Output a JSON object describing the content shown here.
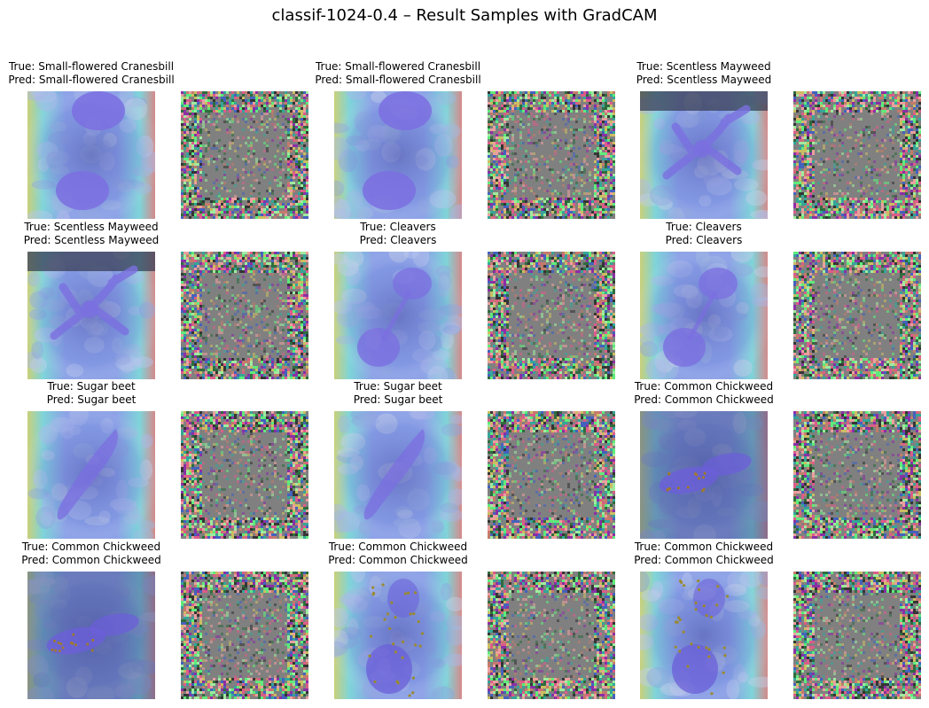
{
  "title": "classif-1024-0.4 – Result Samples with GradCAM",
  "samples": [
    {
      "true_label": "True: Small-flowered Cranesbill",
      "pred_label": "Pred: Small-flowered Cranesbill",
      "plant": "cranesbill"
    },
    {
      "true_label": "True: Small-flowered Cranesbill",
      "pred_label": "Pred: Small-flowered Cranesbill",
      "plant": "cranesbill"
    },
    {
      "true_label": "True: Scentless Mayweed",
      "pred_label": "Pred: Scentless Mayweed",
      "plant": "mayweed"
    },
    {
      "true_label": "True: Scentless Mayweed",
      "pred_label": "Pred: Scentless Mayweed",
      "plant": "mayweed"
    },
    {
      "true_label": "True: Cleavers",
      "pred_label": "Pred: Cleavers",
      "plant": "cleavers"
    },
    {
      "true_label": "True: Cleavers",
      "pred_label": "Pred: Cleavers",
      "plant": "cleavers"
    },
    {
      "true_label": "True: Sugar beet",
      "pred_label": "Pred: Sugar beet",
      "plant": "sugarbeet"
    },
    {
      "true_label": "True: Sugar beet",
      "pred_label": "Pred: Sugar beet",
      "plant": "sugarbeet"
    },
    {
      "true_label": "True: Common Chickweed",
      "pred_label": "Pred: Common Chickweed",
      "plant": "chickweed"
    },
    {
      "true_label": "True: Common Chickweed",
      "pred_label": "Pred: Common Chickweed",
      "plant": "chickweed"
    },
    {
      "true_label": "True: Common Chickweed",
      "pred_label": "Pred: Common Chickweed",
      "plant": "chickweed2"
    },
    {
      "true_label": "True: Common Chickweed",
      "pred_label": "Pred: Common Chickweed",
      "plant": "chickweed2"
    }
  ]
}
